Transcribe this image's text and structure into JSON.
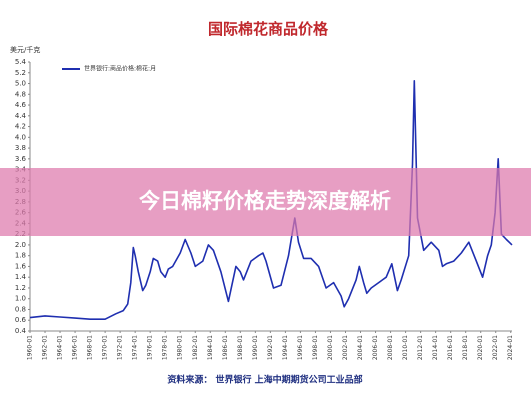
{
  "chart_data": {
    "type": "line",
    "title": "国际棉花商品价格",
    "y_label": "美元/千克",
    "banner": "今日棉籽价格走势深度解析",
    "source": "资料来源：  世界银行    上海中期期货公司工业品部",
    "x": [
      "1960-01",
      "1962-01",
      "1964-01",
      "1966-01",
      "1968-01",
      "1970-01",
      "1971-06",
      "1972-06",
      "1973-01",
      "1973-06",
      "1973-10",
      "1974-01",
      "1974-06",
      "1975-01",
      "1975-06",
      "1976-01",
      "1976-06",
      "1977-01",
      "1977-06",
      "1978-01",
      "1978-06",
      "1979-01",
      "1980-01",
      "1980-09",
      "1981-06",
      "1982-01",
      "1983-01",
      "1983-10",
      "1984-06",
      "1985-06",
      "1986-06",
      "1987-06",
      "1988-01",
      "1988-06",
      "1989-06",
      "1990-06",
      "1991-01",
      "1991-06",
      "1992-06",
      "1993-06",
      "1994-06",
      "1995-04",
      "1995-10",
      "1996-06",
      "1997-06",
      "1998-06",
      "1999-06",
      "2000-06",
      "2001-06",
      "2001-11",
      "2002-06",
      "2003-06",
      "2003-11",
      "2004-06",
      "2004-11",
      "2005-06",
      "2006-06",
      "2007-06",
      "2008-03",
      "2008-12",
      "2009-06",
      "2010-06",
      "2010-12",
      "2011-03",
      "2011-08",
      "2012-06",
      "2013-06",
      "2014-06",
      "2014-12",
      "2015-06",
      "2016-06",
      "2017-06",
      "2018-06",
      "2019-06",
      "2020-04",
      "2020-12",
      "2021-06",
      "2021-12",
      "2022-05",
      "2022-10",
      "2023-06",
      "2024-03"
    ],
    "series": [
      {
        "name": "世界银行:商品价格:棉花:月",
        "color": "#1f2fb0",
        "values": [
          0.65,
          0.68,
          0.66,
          0.64,
          0.62,
          0.62,
          0.72,
          0.78,
          0.9,
          1.3,
          1.95,
          1.8,
          1.5,
          1.15,
          1.25,
          1.5,
          1.75,
          1.7,
          1.5,
          1.4,
          1.55,
          1.6,
          1.85,
          2.1,
          1.85,
          1.6,
          1.7,
          2.0,
          1.9,
          1.5,
          0.95,
          1.6,
          1.5,
          1.35,
          1.7,
          1.8,
          1.85,
          1.7,
          1.2,
          1.25,
          1.8,
          2.5,
          2.05,
          1.75,
          1.75,
          1.6,
          1.2,
          1.3,
          1.05,
          0.85,
          1.0,
          1.35,
          1.6,
          1.3,
          1.1,
          1.2,
          1.3,
          1.4,
          1.65,
          1.15,
          1.35,
          1.8,
          3.5,
          5.05,
          2.5,
          1.9,
          2.05,
          1.9,
          1.6,
          1.65,
          1.7,
          1.85,
          2.05,
          1.7,
          1.4,
          1.8,
          2.0,
          2.6,
          3.6,
          2.2,
          2.1,
          2.0
        ]
      }
    ],
    "ylim": [
      0.4,
      5.4
    ],
    "yticks": [
      0.4,
      0.6,
      0.8,
      {
        "value": 1.0,
        "label": "1.0"
      },
      1.2,
      1.4,
      1.6,
      1.8,
      {
        "value": 2.0,
        "label": "2.0"
      },
      2.2,
      2.4,
      2.6,
      2.8,
      {
        "value": 3.0,
        "label": "3.0"
      },
      3.2,
      3.4,
      3.6,
      3.8,
      {
        "value": 4.0,
        "label": "4.0"
      },
      4.2,
      4.4,
      4.6,
      4.8,
      {
        "value": 5.0,
        "label": "5.0"
      },
      5.2,
      5.4
    ],
    "xticks": [
      "1960-01",
      "1962-01",
      "1964-01",
      "1966-01",
      "1968-01",
      "1970-01",
      "1972-01",
      "1974-01",
      "1976-01",
      "1978-01",
      "1980-01",
      "1982-01",
      "1984-01",
      "1986-01",
      "1988-01",
      "1990-01",
      "1992-01",
      "1994-01",
      "1996-01",
      "1998-01",
      "2000-01",
      "2002-01",
      "2004-01",
      "2006-01",
      "2008-01",
      "2010-01",
      "2012-01",
      "2014-01",
      "2016-01",
      "2018-01",
      "2020-01",
      "2022-01",
      "2024-01"
    ]
  }
}
